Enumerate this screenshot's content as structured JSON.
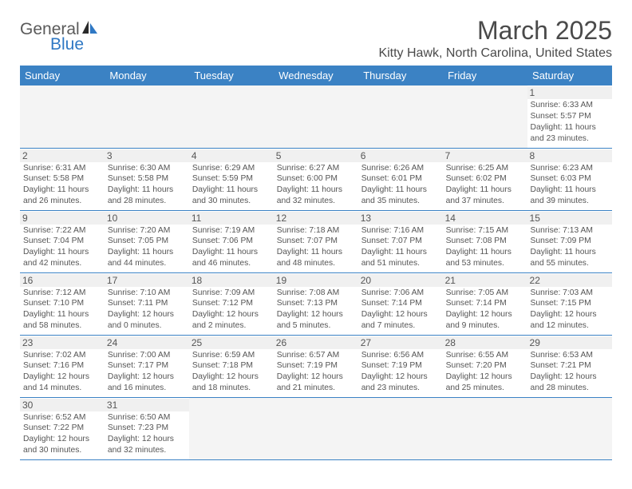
{
  "logo": {
    "part1": "General",
    "part2": "Blue"
  },
  "title": "March 2025",
  "location": "Kitty Hawk, North Carolina, United States",
  "headers": [
    "Sunday",
    "Monday",
    "Tuesday",
    "Wednesday",
    "Thursday",
    "Friday",
    "Saturday"
  ],
  "colors": {
    "header_bg": "#3b82c4",
    "header_text": "#ffffff",
    "border": "#3b82c4",
    "daynum_bg": "#f0f0f0",
    "empty_bg": "#f4f4f4",
    "text": "#555555",
    "logo_blue": "#2f78c4"
  },
  "weeks": [
    [
      null,
      null,
      null,
      null,
      null,
      null,
      {
        "n": "1",
        "sr": "Sunrise: 6:33 AM",
        "ss": "Sunset: 5:57 PM",
        "d1": "Daylight: 11 hours",
        "d2": "and 23 minutes."
      }
    ],
    [
      {
        "n": "2",
        "sr": "Sunrise: 6:31 AM",
        "ss": "Sunset: 5:58 PM",
        "d1": "Daylight: 11 hours",
        "d2": "and 26 minutes."
      },
      {
        "n": "3",
        "sr": "Sunrise: 6:30 AM",
        "ss": "Sunset: 5:58 PM",
        "d1": "Daylight: 11 hours",
        "d2": "and 28 minutes."
      },
      {
        "n": "4",
        "sr": "Sunrise: 6:29 AM",
        "ss": "Sunset: 5:59 PM",
        "d1": "Daylight: 11 hours",
        "d2": "and 30 minutes."
      },
      {
        "n": "5",
        "sr": "Sunrise: 6:27 AM",
        "ss": "Sunset: 6:00 PM",
        "d1": "Daylight: 11 hours",
        "d2": "and 32 minutes."
      },
      {
        "n": "6",
        "sr": "Sunrise: 6:26 AM",
        "ss": "Sunset: 6:01 PM",
        "d1": "Daylight: 11 hours",
        "d2": "and 35 minutes."
      },
      {
        "n": "7",
        "sr": "Sunrise: 6:25 AM",
        "ss": "Sunset: 6:02 PM",
        "d1": "Daylight: 11 hours",
        "d2": "and 37 minutes."
      },
      {
        "n": "8",
        "sr": "Sunrise: 6:23 AM",
        "ss": "Sunset: 6:03 PM",
        "d1": "Daylight: 11 hours",
        "d2": "and 39 minutes."
      }
    ],
    [
      {
        "n": "9",
        "sr": "Sunrise: 7:22 AM",
        "ss": "Sunset: 7:04 PM",
        "d1": "Daylight: 11 hours",
        "d2": "and 42 minutes."
      },
      {
        "n": "10",
        "sr": "Sunrise: 7:20 AM",
        "ss": "Sunset: 7:05 PM",
        "d1": "Daylight: 11 hours",
        "d2": "and 44 minutes."
      },
      {
        "n": "11",
        "sr": "Sunrise: 7:19 AM",
        "ss": "Sunset: 7:06 PM",
        "d1": "Daylight: 11 hours",
        "d2": "and 46 minutes."
      },
      {
        "n": "12",
        "sr": "Sunrise: 7:18 AM",
        "ss": "Sunset: 7:07 PM",
        "d1": "Daylight: 11 hours",
        "d2": "and 48 minutes."
      },
      {
        "n": "13",
        "sr": "Sunrise: 7:16 AM",
        "ss": "Sunset: 7:07 PM",
        "d1": "Daylight: 11 hours",
        "d2": "and 51 minutes."
      },
      {
        "n": "14",
        "sr": "Sunrise: 7:15 AM",
        "ss": "Sunset: 7:08 PM",
        "d1": "Daylight: 11 hours",
        "d2": "and 53 minutes."
      },
      {
        "n": "15",
        "sr": "Sunrise: 7:13 AM",
        "ss": "Sunset: 7:09 PM",
        "d1": "Daylight: 11 hours",
        "d2": "and 55 minutes."
      }
    ],
    [
      {
        "n": "16",
        "sr": "Sunrise: 7:12 AM",
        "ss": "Sunset: 7:10 PM",
        "d1": "Daylight: 11 hours",
        "d2": "and 58 minutes."
      },
      {
        "n": "17",
        "sr": "Sunrise: 7:10 AM",
        "ss": "Sunset: 7:11 PM",
        "d1": "Daylight: 12 hours",
        "d2": "and 0 minutes."
      },
      {
        "n": "18",
        "sr": "Sunrise: 7:09 AM",
        "ss": "Sunset: 7:12 PM",
        "d1": "Daylight: 12 hours",
        "d2": "and 2 minutes."
      },
      {
        "n": "19",
        "sr": "Sunrise: 7:08 AM",
        "ss": "Sunset: 7:13 PM",
        "d1": "Daylight: 12 hours",
        "d2": "and 5 minutes."
      },
      {
        "n": "20",
        "sr": "Sunrise: 7:06 AM",
        "ss": "Sunset: 7:14 PM",
        "d1": "Daylight: 12 hours",
        "d2": "and 7 minutes."
      },
      {
        "n": "21",
        "sr": "Sunrise: 7:05 AM",
        "ss": "Sunset: 7:14 PM",
        "d1": "Daylight: 12 hours",
        "d2": "and 9 minutes."
      },
      {
        "n": "22",
        "sr": "Sunrise: 7:03 AM",
        "ss": "Sunset: 7:15 PM",
        "d1": "Daylight: 12 hours",
        "d2": "and 12 minutes."
      }
    ],
    [
      {
        "n": "23",
        "sr": "Sunrise: 7:02 AM",
        "ss": "Sunset: 7:16 PM",
        "d1": "Daylight: 12 hours",
        "d2": "and 14 minutes."
      },
      {
        "n": "24",
        "sr": "Sunrise: 7:00 AM",
        "ss": "Sunset: 7:17 PM",
        "d1": "Daylight: 12 hours",
        "d2": "and 16 minutes."
      },
      {
        "n": "25",
        "sr": "Sunrise: 6:59 AM",
        "ss": "Sunset: 7:18 PM",
        "d1": "Daylight: 12 hours",
        "d2": "and 18 minutes."
      },
      {
        "n": "26",
        "sr": "Sunrise: 6:57 AM",
        "ss": "Sunset: 7:19 PM",
        "d1": "Daylight: 12 hours",
        "d2": "and 21 minutes."
      },
      {
        "n": "27",
        "sr": "Sunrise: 6:56 AM",
        "ss": "Sunset: 7:19 PM",
        "d1": "Daylight: 12 hours",
        "d2": "and 23 minutes."
      },
      {
        "n": "28",
        "sr": "Sunrise: 6:55 AM",
        "ss": "Sunset: 7:20 PM",
        "d1": "Daylight: 12 hours",
        "d2": "and 25 minutes."
      },
      {
        "n": "29",
        "sr": "Sunrise: 6:53 AM",
        "ss": "Sunset: 7:21 PM",
        "d1": "Daylight: 12 hours",
        "d2": "and 28 minutes."
      }
    ],
    [
      {
        "n": "30",
        "sr": "Sunrise: 6:52 AM",
        "ss": "Sunset: 7:22 PM",
        "d1": "Daylight: 12 hours",
        "d2": "and 30 minutes."
      },
      {
        "n": "31",
        "sr": "Sunrise: 6:50 AM",
        "ss": "Sunset: 7:23 PM",
        "d1": "Daylight: 12 hours",
        "d2": "and 32 minutes."
      },
      null,
      null,
      null,
      null,
      null
    ]
  ]
}
